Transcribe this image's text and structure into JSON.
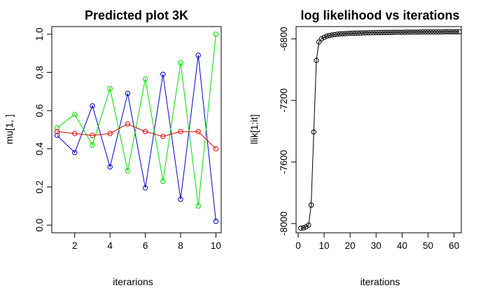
{
  "chart_data": [
    {
      "type": "line",
      "title": "Predicted plot 3K",
      "xlabel": "iterarions",
      "ylabel": "mu[1, ]",
      "xlim": [
        0.7,
        10.3
      ],
      "ylim": [
        -0.04,
        1.04
      ],
      "xticks": [
        2,
        4,
        6,
        8,
        10
      ],
      "yticks": [
        0.0,
        0.2,
        0.4,
        0.6,
        0.8,
        1.0
      ],
      "ytick_labels": [
        "0.0",
        "0.2",
        "0.4",
        "0.6",
        "0.8",
        "1.0"
      ],
      "x": [
        1,
        2,
        3,
        4,
        5,
        6,
        7,
        8,
        9,
        10
      ],
      "series": [
        {
          "color": "#0000cc",
          "values": [
            0.47,
            0.38,
            0.625,
            0.305,
            0.69,
            0.195,
            0.79,
            0.135,
            0.89,
            0.02
          ]
        },
        {
          "color": "#00dd00",
          "values": [
            0.51,
            0.58,
            0.42,
            0.715,
            0.285,
            0.765,
            0.23,
            0.85,
            0.1,
            1.0
          ]
        },
        {
          "color": "#dd0000",
          "values": [
            0.49,
            0.48,
            0.47,
            0.48,
            0.53,
            0.49,
            0.465,
            0.49,
            0.49,
            0.4
          ]
        }
      ]
    },
    {
      "type": "line",
      "title": "log likelihood vs iterations",
      "xlabel": "iterations",
      "ylabel": "llik[1:it]",
      "xlim": [
        -0.8,
        62.8
      ],
      "ylim": [
        -8060,
        -6720
      ],
      "xticks": [
        0,
        10,
        20,
        30,
        40,
        50,
        60
      ],
      "yticks": [
        -8000,
        -7600,
        -7200,
        -6800
      ],
      "ytick_labels": [
        "-8000",
        "-7600",
        "-7200",
        "-6800"
      ],
      "series": [
        {
          "color": "#000000",
          "x": [
            1,
            2,
            3,
            4,
            5,
            6,
            7,
            8,
            9,
            10,
            11,
            12,
            13,
            14,
            15,
            16,
            17,
            18,
            19,
            20,
            21,
            22,
            23,
            24,
            25,
            26,
            27,
            28,
            29,
            30,
            31,
            32,
            33,
            34,
            35,
            36,
            37,
            38,
            39,
            40,
            41,
            42,
            43,
            44,
            45,
            46,
            47,
            48,
            49,
            50,
            51,
            52,
            53,
            54,
            55,
            56,
            57,
            58,
            59,
            60,
            61,
            62
          ],
          "values": [
            -8030,
            -8028,
            -8022,
            -8010,
            -7880,
            -7405,
            -6940,
            -6820,
            -6800,
            -6790,
            -6783,
            -6778,
            -6775,
            -6772,
            -6770,
            -6768,
            -6767,
            -6766,
            -6765,
            -6764,
            -6763,
            -6763,
            -6762,
            -6762,
            -6761,
            -6761,
            -6760,
            -6760,
            -6760,
            -6759,
            -6759,
            -6759,
            -6758,
            -6758,
            -6758,
            -6758,
            -6757,
            -6757,
            -6757,
            -6757,
            -6757,
            -6756,
            -6756,
            -6756,
            -6756,
            -6756,
            -6756,
            -6755,
            -6755,
            -6755,
            -6755,
            -6755,
            -6755,
            -6755,
            -6755,
            -6754,
            -6754,
            -6754,
            -6754,
            -6754,
            -6754,
            -6754
          ]
        }
      ]
    }
  ]
}
